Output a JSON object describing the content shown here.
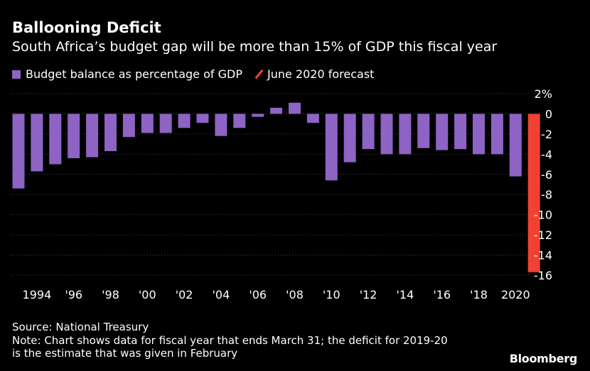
{
  "header": {
    "title": "Ballooning Deficit",
    "subtitle": "South Africa’s budget gap will be more than 15% of GDP this fiscal year"
  },
  "legend": {
    "items": [
      {
        "label": "Budget balance as percentage of GDP",
        "color": "#8d63c4",
        "icon": "square-swatch"
      },
      {
        "label": "June 2020 forecast",
        "color": "#f04132",
        "icon": "slash-swatch"
      }
    ]
  },
  "footer": {
    "source": "Source: National Treasury",
    "note_line1": "Note: Chart shows data for fiscal year that ends March 31; the deficit for 2019-20",
    "note_line2": "is the estimate that was given in February",
    "brand": "Bloomberg"
  },
  "chart_data": {
    "type": "bar",
    "ylim": [
      -16,
      2
    ],
    "yticks": [
      2,
      0,
      -2,
      -4,
      -6,
      -8,
      -10,
      -12,
      -14,
      -16
    ],
    "ytick_labels": [
      "2%",
      "0",
      "-2",
      "-4",
      "-6",
      "-8",
      "-10",
      "-12",
      "-14",
      "-16"
    ],
    "grid": true,
    "xtick_labels": [
      {
        "year": 1994,
        "label": "1994"
      },
      {
        "year": 1996,
        "label": "'96"
      },
      {
        "year": 1998,
        "label": "'98"
      },
      {
        "year": 2000,
        "label": "'00"
      },
      {
        "year": 2002,
        "label": "'02"
      },
      {
        "year": 2004,
        "label": "'04"
      },
      {
        "year": 2006,
        "label": "'06"
      },
      {
        "year": 2008,
        "label": "'08"
      },
      {
        "year": 2010,
        "label": "'10"
      },
      {
        "year": 2012,
        "label": "'12"
      },
      {
        "year": 2014,
        "label": "'14"
      },
      {
        "year": 2016,
        "label": "'16"
      },
      {
        "year": 2018,
        "label": "'18"
      },
      {
        "year": 2020,
        "label": "2020"
      }
    ],
    "series": [
      {
        "name": "Budget balance as percentage of GDP",
        "color": "#8d63c4",
        "x": [
          1993,
          1994,
          1995,
          1996,
          1997,
          1998,
          1999,
          2000,
          2001,
          2002,
          2003,
          2004,
          2005,
          2006,
          2007,
          2008,
          2009,
          2010,
          2011,
          2012,
          2013,
          2014,
          2015,
          2016,
          2017,
          2018,
          2019,
          2020
        ],
        "values": [
          -7.4,
          -5.7,
          -5.0,
          -4.4,
          -4.3,
          -3.7,
          -2.3,
          -1.9,
          -1.9,
          -1.4,
          -0.9,
          -2.2,
          -1.4,
          -0.3,
          0.6,
          1.1,
          -0.9,
          -6.6,
          -4.8,
          -3.5,
          -4.0,
          -4.0,
          -3.4,
          -3.6,
          -3.5,
          -4.0,
          -4.0,
          -6.2
        ]
      },
      {
        "name": "June 2020 forecast",
        "color": "#f04132",
        "x": [
          2021
        ],
        "values": [
          -15.7
        ]
      }
    ]
  }
}
